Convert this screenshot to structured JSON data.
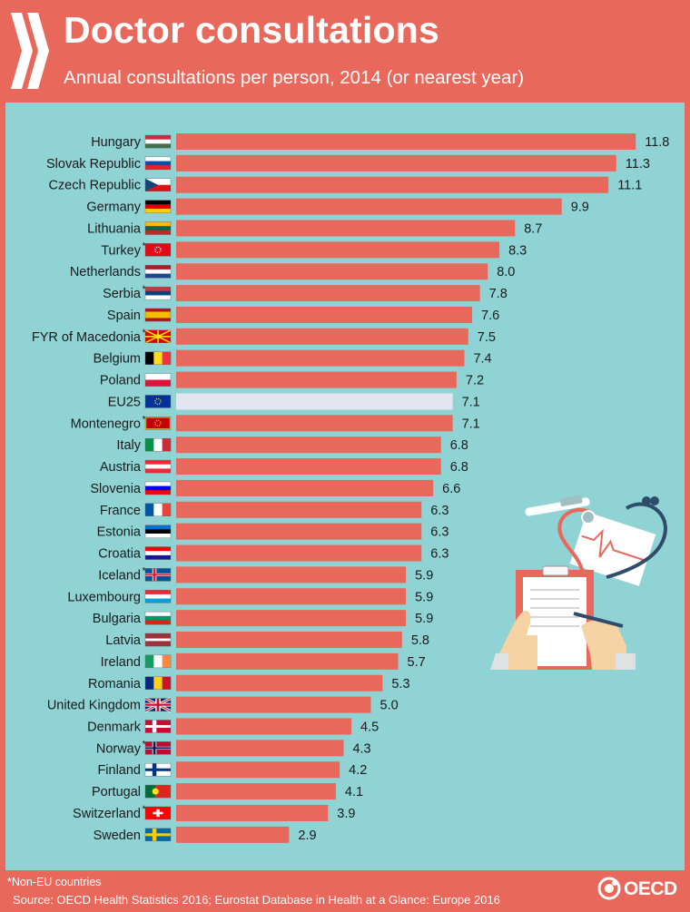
{
  "header": {
    "title": "Doctor consultations",
    "subtitle": "Annual consultations per person, 2014 (or nearest year)"
  },
  "footer": {
    "footnote": "*Non-EU countries",
    "source": "Source: OECD Health Statistics 2016; Eurostat Database in Health at a Glance: Europe 2016",
    "brand": "OECD"
  },
  "colors": {
    "background": "#e8685c",
    "panel": "#8fd3d5",
    "bar": "#e8685c",
    "highlight_bar": "#e3e6f0"
  },
  "chart_data": {
    "type": "bar",
    "orientation": "horizontal",
    "title": "Doctor consultations",
    "subtitle": "Annual consultations per person, 2014 (or nearest year)",
    "xlim": [
      0,
      11.8
    ],
    "grid": false,
    "categories": [
      "Hungary",
      "Slovak Republic",
      "Czech Republic",
      "Germany",
      "Lithuania",
      "Turkey",
      "Netherlands",
      "Serbia",
      "Spain",
      "FYR of Macedonia",
      "Belgium",
      "Poland",
      "EU25",
      "Montenegro",
      "Italy",
      "Austria",
      "Slovenia",
      "France",
      "Estonia",
      "Croatia",
      "Iceland",
      "Luxembourg",
      "Bulgaria",
      "Latvia",
      "Ireland",
      "Romania",
      "United Kingdom",
      "Denmark",
      "Norway",
      "Finland",
      "Portugal",
      "Switzerland",
      "Sweden"
    ],
    "values": [
      11.8,
      11.3,
      11.1,
      9.9,
      8.7,
      8.3,
      8.0,
      7.8,
      7.6,
      7.5,
      7.4,
      7.2,
      7.1,
      7.1,
      6.8,
      6.8,
      6.6,
      6.3,
      6.3,
      6.3,
      5.9,
      5.9,
      5.9,
      5.8,
      5.7,
      5.3,
      5.0,
      4.5,
      4.3,
      4.2,
      4.1,
      3.9,
      2.9
    ],
    "value_labels": [
      "11.8",
      "11.3",
      "11.1",
      "9.9",
      "8.7",
      "8.3",
      "8.0",
      "7.8",
      "7.6",
      "7.5",
      "7.4",
      "7.2",
      "7.1",
      "7.1",
      "6.8",
      "6.8",
      "6.6",
      "6.3",
      "6.3",
      "6.3",
      "5.9",
      "5.9",
      "5.9",
      "5.8",
      "5.7",
      "5.3",
      "5.0",
      "4.5",
      "4.3",
      "4.2",
      "4.1",
      "3.9",
      "2.9"
    ],
    "non_eu": [
      "Turkey",
      "Serbia",
      "FYR of Macedonia",
      "Montenegro",
      "Iceland",
      "Norway",
      "Switzerland"
    ],
    "non_eu_marker": "*",
    "highlight": "EU25"
  }
}
